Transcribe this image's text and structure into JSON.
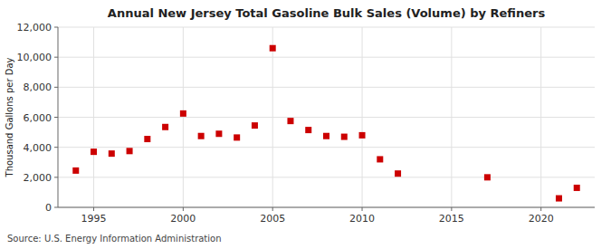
{
  "chart_data": {
    "type": "scatter",
    "title": "Annual New Jersey Total Gasoline Bulk Sales (Volume) by Refiners",
    "ylabel": "Thousand Gallons per Day",
    "annotations": [
      "Source: U.S. Energy Information Administration"
    ],
    "x": [
      1994,
      1995,
      1996,
      1997,
      1998,
      1999,
      2000,
      2001,
      2002,
      2003,
      2004,
      2005,
      2006,
      2007,
      2008,
      2009,
      2010,
      2011,
      2012,
      2017,
      2021,
      2022
    ],
    "values": [
      2450,
      3700,
      3580,
      3750,
      4550,
      5350,
      6250,
      4750,
      4900,
      4650,
      5450,
      10600,
      5750,
      5150,
      4750,
      4700,
      4800,
      3200,
      2250,
      2000,
      600,
      1300
    ],
    "color": "#cc0000",
    "marker": "square",
    "xlim": [
      1993,
      2023
    ],
    "ylim": [
      0,
      12000
    ],
    "xticks": [
      1995,
      2000,
      2005,
      2010,
      2015,
      2020
    ],
    "yticks": [
      0,
      {
        "value": 2000,
        "label": "2,000"
      },
      {
        "value": 4000,
        "label": "4,000"
      },
      {
        "value": 6000,
        "label": "6,000"
      },
      {
        "value": 8000,
        "label": "8,000"
      },
      {
        "value": 10000,
        "label": "10,000"
      },
      {
        "value": 12000,
        "label": "12,000"
      }
    ],
    "grid": true
  }
}
